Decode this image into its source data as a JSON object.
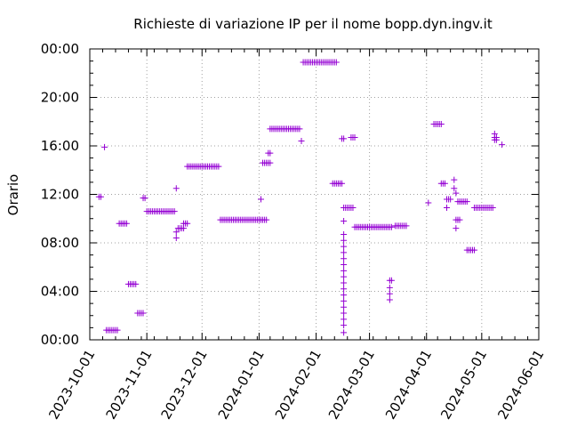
{
  "chart_data": {
    "type": "scatter",
    "title": "Richieste di variazione IP per il nome bopp.dyn.ingv.it",
    "xlabel": "",
    "ylabel": "Orario",
    "marker": "+",
    "color": "#9400d3",
    "grid": true,
    "grid_style": "dotted",
    "xlim": [
      "2023-10-01",
      "2024-06-01"
    ],
    "ylim": [
      0,
      24
    ],
    "x_ticks": [
      {
        "value": "2023-10-01",
        "label": "2023-10-01"
      },
      {
        "value": "2023-11-01",
        "label": "2023-11-01"
      },
      {
        "value": "2023-12-01",
        "label": "2023-12-01"
      },
      {
        "value": "2024-01-01",
        "label": "2024-01-01"
      },
      {
        "value": "2024-02-01",
        "label": "2024-02-01"
      },
      {
        "value": "2024-03-01",
        "label": "2024-03-01"
      },
      {
        "value": "2024-04-01",
        "label": "2024-04-01"
      },
      {
        "value": "2024-05-01",
        "label": "2024-05-01"
      },
      {
        "value": "2024-06-01",
        "label": "2024-06-01"
      }
    ],
    "y_ticks": [
      {
        "value": 0,
        "label": "00:00"
      },
      {
        "value": 4,
        "label": "04:00"
      },
      {
        "value": 8,
        "label": "08:00"
      },
      {
        "value": 12,
        "label": "12:00"
      },
      {
        "value": 16,
        "label": "16:00"
      },
      {
        "value": 20,
        "label": "20:00"
      },
      {
        "value": 24,
        "label": "00:00"
      }
    ],
    "points": [
      [
        "2023-10-06",
        11.8
      ],
      [
        "2023-10-07",
        11.8
      ],
      [
        "2023-10-09",
        15.9
      ],
      [
        "2023-10-10",
        0.8
      ],
      [
        "2023-10-11",
        0.8
      ],
      [
        "2023-10-12",
        0.8
      ],
      [
        "2023-10-13",
        0.8
      ],
      [
        "2023-10-14",
        0.8
      ],
      [
        "2023-10-15",
        0.8
      ],
      [
        "2023-10-16",
        0.8
      ],
      [
        "2023-10-17",
        9.6
      ],
      [
        "2023-10-18",
        9.6
      ],
      [
        "2023-10-19",
        9.6
      ],
      [
        "2023-10-20",
        9.6
      ],
      [
        "2023-10-21",
        9.6
      ],
      [
        "2023-10-22",
        4.6
      ],
      [
        "2023-10-23",
        4.6
      ],
      [
        "2023-10-24",
        4.6
      ],
      [
        "2023-10-25",
        4.6
      ],
      [
        "2023-10-26",
        4.6
      ],
      [
        "2023-10-27",
        2.2
      ],
      [
        "2023-10-28",
        2.2
      ],
      [
        "2023-10-29",
        2.2
      ],
      [
        "2023-10-30",
        2.2
      ],
      [
        "2023-10-30",
        11.7
      ],
      [
        "2023-10-31",
        11.7
      ],
      [
        "2023-11-01",
        10.6
      ],
      [
        "2023-11-02",
        10.6
      ],
      [
        "2023-11-03",
        10.6
      ],
      [
        "2023-11-04",
        10.6
      ],
      [
        "2023-11-05",
        10.6
      ],
      [
        "2023-11-06",
        10.6
      ],
      [
        "2023-11-07",
        10.6
      ],
      [
        "2023-11-08",
        10.6
      ],
      [
        "2023-11-09",
        10.6
      ],
      [
        "2023-11-10",
        10.6
      ],
      [
        "2023-11-11",
        10.6
      ],
      [
        "2023-11-12",
        10.6
      ],
      [
        "2023-11-13",
        10.6
      ],
      [
        "2023-11-14",
        10.6
      ],
      [
        "2023-11-15",
        10.6
      ],
      [
        "2023-11-16",
        10.6
      ],
      [
        "2023-11-17",
        12.5
      ],
      [
        "2023-11-17",
        8.9
      ],
      [
        "2023-11-17",
        8.4
      ],
      [
        "2023-11-18",
        9.2
      ],
      [
        "2023-11-19",
        9.2
      ],
      [
        "2023-11-20",
        9.2
      ],
      [
        "2023-11-21",
        9.2
      ],
      [
        "2023-11-21",
        9.6
      ],
      [
        "2023-11-22",
        9.6
      ],
      [
        "2023-11-23",
        9.6
      ],
      [
        "2023-11-23",
        14.3
      ],
      [
        "2023-11-24",
        14.3
      ],
      [
        "2023-11-25",
        14.3
      ],
      [
        "2023-11-26",
        14.3
      ],
      [
        "2023-11-27",
        14.3
      ],
      [
        "2023-11-28",
        14.3
      ],
      [
        "2023-11-29",
        14.3
      ],
      [
        "2023-11-30",
        14.3
      ],
      [
        "2023-12-01",
        14.3
      ],
      [
        "2023-12-02",
        14.3
      ],
      [
        "2023-12-03",
        14.3
      ],
      [
        "2023-12-04",
        14.3
      ],
      [
        "2023-12-05",
        14.3
      ],
      [
        "2023-12-06",
        14.3
      ],
      [
        "2023-12-07",
        14.3
      ],
      [
        "2023-12-08",
        14.3
      ],
      [
        "2023-12-09",
        14.3
      ],
      [
        "2023-12-10",
        14.3
      ],
      [
        "2023-12-11",
        9.9
      ],
      [
        "2023-12-12",
        9.9
      ],
      [
        "2023-12-13",
        9.9
      ],
      [
        "2023-12-14",
        9.9
      ],
      [
        "2023-12-15",
        9.9
      ],
      [
        "2023-12-16",
        9.9
      ],
      [
        "2023-12-17",
        9.9
      ],
      [
        "2023-12-18",
        9.9
      ],
      [
        "2023-12-19",
        9.9
      ],
      [
        "2023-12-20",
        9.9
      ],
      [
        "2023-12-21",
        9.9
      ],
      [
        "2023-12-22",
        9.9
      ],
      [
        "2023-12-23",
        9.9
      ],
      [
        "2023-12-24",
        9.9
      ],
      [
        "2023-12-25",
        9.9
      ],
      [
        "2023-12-26",
        9.9
      ],
      [
        "2023-12-27",
        9.9
      ],
      [
        "2023-12-28",
        9.9
      ],
      [
        "2023-12-29",
        9.9
      ],
      [
        "2023-12-30",
        9.9
      ],
      [
        "2023-12-31",
        9.9
      ],
      [
        "2024-01-01",
        9.9
      ],
      [
        "2024-01-02",
        9.9
      ],
      [
        "2024-01-03",
        9.9
      ],
      [
        "2024-01-04",
        9.9
      ],
      [
        "2024-01-05",
        9.9
      ],
      [
        "2024-01-02",
        11.6
      ],
      [
        "2024-01-03",
        14.6
      ],
      [
        "2024-01-04",
        14.6
      ],
      [
        "2024-01-05",
        14.6
      ],
      [
        "2024-01-06",
        14.6
      ],
      [
        "2024-01-07",
        14.6
      ],
      [
        "2024-01-06",
        15.4
      ],
      [
        "2024-01-07",
        15.4
      ],
      [
        "2024-01-07",
        17.4
      ],
      [
        "2024-01-08",
        17.4
      ],
      [
        "2024-01-09",
        17.4
      ],
      [
        "2024-01-10",
        17.4
      ],
      [
        "2024-01-11",
        17.4
      ],
      [
        "2024-01-12",
        17.4
      ],
      [
        "2024-01-13",
        17.4
      ],
      [
        "2024-01-14",
        17.4
      ],
      [
        "2024-01-15",
        17.4
      ],
      [
        "2024-01-16",
        17.4
      ],
      [
        "2024-01-17",
        17.4
      ],
      [
        "2024-01-18",
        17.4
      ],
      [
        "2024-01-19",
        17.4
      ],
      [
        "2024-01-20",
        17.4
      ],
      [
        "2024-01-21",
        17.4
      ],
      [
        "2024-01-22",
        17.4
      ],
      [
        "2024-01-23",
        17.4
      ],
      [
        "2024-01-24",
        16.4
      ],
      [
        "2024-01-25",
        22.9
      ],
      [
        "2024-01-26",
        22.9
      ],
      [
        "2024-01-27",
        22.9
      ],
      [
        "2024-01-28",
        22.9
      ],
      [
        "2024-01-29",
        22.9
      ],
      [
        "2024-01-30",
        22.9
      ],
      [
        "2024-01-31",
        22.9
      ],
      [
        "2024-02-01",
        22.9
      ],
      [
        "2024-02-02",
        22.9
      ],
      [
        "2024-02-03",
        22.9
      ],
      [
        "2024-02-04",
        22.9
      ],
      [
        "2024-02-05",
        22.9
      ],
      [
        "2024-02-06",
        22.9
      ],
      [
        "2024-02-07",
        22.9
      ],
      [
        "2024-02-08",
        22.9
      ],
      [
        "2024-02-09",
        22.9
      ],
      [
        "2024-02-10",
        22.9
      ],
      [
        "2024-02-11",
        22.9
      ],
      [
        "2024-02-12",
        22.9
      ],
      [
        "2024-02-10",
        12.9
      ],
      [
        "2024-02-11",
        12.9
      ],
      [
        "2024-02-12",
        12.9
      ],
      [
        "2024-02-13",
        12.9
      ],
      [
        "2024-02-14",
        12.9
      ],
      [
        "2024-02-15",
        12.9
      ],
      [
        "2024-02-15",
        16.6
      ],
      [
        "2024-02-16",
        16.6
      ],
      [
        "2024-02-16",
        10.9
      ],
      [
        "2024-02-17",
        10.9
      ],
      [
        "2024-02-18",
        10.9
      ],
      [
        "2024-02-19",
        10.9
      ],
      [
        "2024-02-20",
        10.9
      ],
      [
        "2024-02-21",
        10.9
      ],
      [
        "2024-02-20",
        16.7
      ],
      [
        "2024-02-21",
        16.7
      ],
      [
        "2024-02-22",
        16.7
      ],
      [
        "2024-02-16",
        9.8
      ],
      [
        "2024-02-16",
        8.7
      ],
      [
        "2024-02-16",
        8.2
      ],
      [
        "2024-02-16",
        7.7
      ],
      [
        "2024-02-16",
        7.2
      ],
      [
        "2024-02-16",
        6.7
      ],
      [
        "2024-02-16",
        6.2
      ],
      [
        "2024-02-16",
        5.7
      ],
      [
        "2024-02-16",
        5.2
      ],
      [
        "2024-02-16",
        4.7
      ],
      [
        "2024-02-16",
        4.2
      ],
      [
        "2024-02-16",
        3.7
      ],
      [
        "2024-02-16",
        3.2
      ],
      [
        "2024-02-16",
        2.7
      ],
      [
        "2024-02-16",
        2.2
      ],
      [
        "2024-02-16",
        1.7
      ],
      [
        "2024-02-16",
        1.2
      ],
      [
        "2024-02-16",
        0.6
      ],
      [
        "2024-02-22",
        9.3
      ],
      [
        "2024-02-23",
        9.3
      ],
      [
        "2024-02-24",
        9.3
      ],
      [
        "2024-02-25",
        9.3
      ],
      [
        "2024-02-26",
        9.3
      ],
      [
        "2024-02-27",
        9.3
      ],
      [
        "2024-02-28",
        9.3
      ],
      [
        "2024-02-29",
        9.3
      ],
      [
        "2024-03-01",
        9.3
      ],
      [
        "2024-03-02",
        9.3
      ],
      [
        "2024-03-03",
        9.3
      ],
      [
        "2024-03-04",
        9.3
      ],
      [
        "2024-03-05",
        9.3
      ],
      [
        "2024-03-06",
        9.3
      ],
      [
        "2024-03-07",
        9.3
      ],
      [
        "2024-03-08",
        9.3
      ],
      [
        "2024-03-09",
        9.3
      ],
      [
        "2024-03-10",
        9.3
      ],
      [
        "2024-03-11",
        9.3
      ],
      [
        "2024-03-12",
        9.3
      ],
      [
        "2024-03-13",
        9.3
      ],
      [
        "2024-03-12",
        4.9
      ],
      [
        "2024-03-13",
        4.9
      ],
      [
        "2024-03-12",
        4.3
      ],
      [
        "2024-03-12",
        3.8
      ],
      [
        "2024-03-12",
        3.3
      ],
      [
        "2024-03-15",
        9.4
      ],
      [
        "2024-03-16",
        9.4
      ],
      [
        "2024-03-17",
        9.4
      ],
      [
        "2024-03-18",
        9.4
      ],
      [
        "2024-03-19",
        9.4
      ],
      [
        "2024-03-20",
        9.4
      ],
      [
        "2024-03-21",
        9.4
      ],
      [
        "2024-04-02",
        11.3
      ],
      [
        "2024-04-05",
        17.8
      ],
      [
        "2024-04-06",
        17.8
      ],
      [
        "2024-04-07",
        17.8
      ],
      [
        "2024-04-08",
        17.8
      ],
      [
        "2024-04-09",
        17.8
      ],
      [
        "2024-04-09",
        12.9
      ],
      [
        "2024-04-10",
        12.9
      ],
      [
        "2024-04-11",
        12.9
      ],
      [
        "2024-04-12",
        11.6
      ],
      [
        "2024-04-13",
        11.6
      ],
      [
        "2024-04-14",
        11.6
      ],
      [
        "2024-04-12",
        10.9
      ],
      [
        "2024-04-16",
        13.2
      ],
      [
        "2024-04-16",
        12.5
      ],
      [
        "2024-04-17",
        12.1
      ],
      [
        "2024-04-17",
        9.9
      ],
      [
        "2024-04-18",
        9.9
      ],
      [
        "2024-04-19",
        9.9
      ],
      [
        "2024-04-17",
        9.2
      ],
      [
        "2024-04-18",
        11.4
      ],
      [
        "2024-04-19",
        11.4
      ],
      [
        "2024-04-20",
        11.4
      ],
      [
        "2024-04-21",
        11.4
      ],
      [
        "2024-04-22",
        11.4
      ],
      [
        "2024-04-23",
        11.4
      ],
      [
        "2024-04-23",
        7.4
      ],
      [
        "2024-04-24",
        7.4
      ],
      [
        "2024-04-25",
        7.4
      ],
      [
        "2024-04-26",
        7.4
      ],
      [
        "2024-04-27",
        7.4
      ],
      [
        "2024-04-27",
        10.9
      ],
      [
        "2024-04-28",
        10.9
      ],
      [
        "2024-04-29",
        10.9
      ],
      [
        "2024-04-30",
        10.9
      ],
      [
        "2024-05-01",
        10.9
      ],
      [
        "2024-05-02",
        10.9
      ],
      [
        "2024-05-03",
        10.9
      ],
      [
        "2024-05-04",
        10.9
      ],
      [
        "2024-05-05",
        10.9
      ],
      [
        "2024-05-06",
        10.9
      ],
      [
        "2024-05-07",
        10.9
      ],
      [
        "2024-05-08",
        17.0
      ],
      [
        "2024-05-08",
        16.7
      ],
      [
        "2024-05-09",
        16.7
      ],
      [
        "2024-05-09",
        16.5
      ],
      [
        "2024-05-08",
        16.5
      ],
      [
        "2024-05-12",
        16.1
      ]
    ]
  }
}
